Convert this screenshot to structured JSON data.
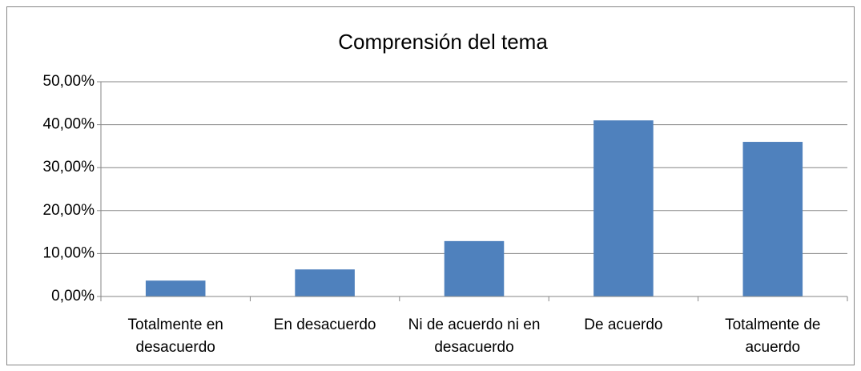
{
  "chart_data": {
    "type": "bar",
    "title": "Comprensión del tema",
    "categories": [
      "Totalmente en desacuerdo",
      "En desacuerdo",
      "Ni de acuerdo ni en desacuerdo",
      "De acuerdo",
      "Totalmente de acuerdo"
    ],
    "values": [
      3.7,
      6.3,
      12.9,
      41,
      36
    ],
    "color": "#4f81bd",
    "ylim": [
      0,
      50
    ],
    "yticks": [
      {
        "value": 0,
        "label": "0,00%"
      },
      {
        "value": 10,
        "label": "10,00%"
      },
      {
        "value": 20,
        "label": "20,00%"
      },
      {
        "value": 30,
        "label": "30,00%"
      },
      {
        "value": 40,
        "label": "40,00%"
      },
      {
        "value": 50,
        "label": "50,00%"
      }
    ],
    "grid": true
  }
}
